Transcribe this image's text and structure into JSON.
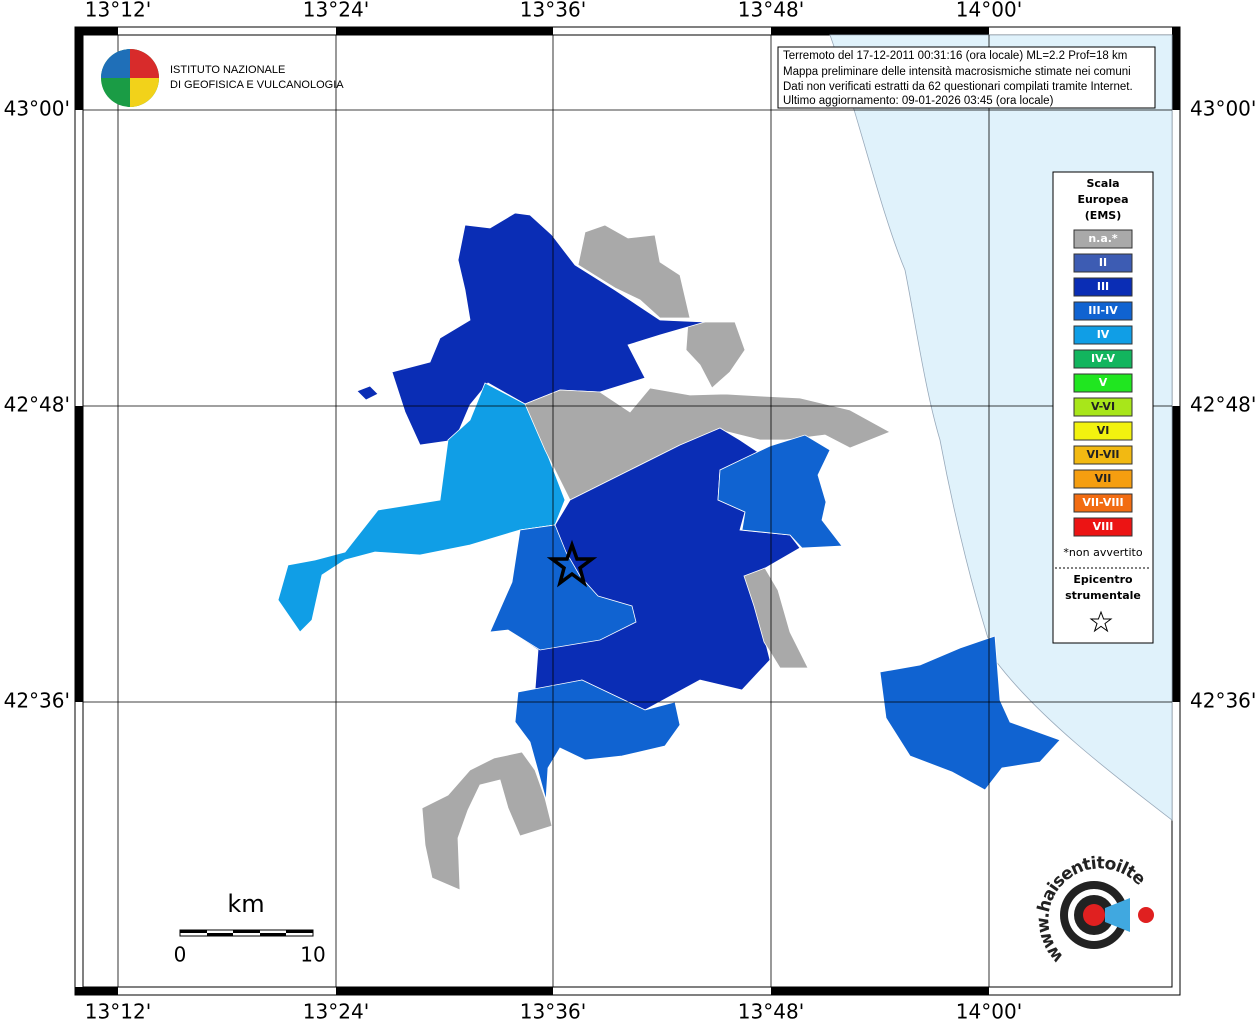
{
  "logo": {
    "line1": "ISTITUTO NAZIONALE",
    "line2": "DI GEOFISICA E VULCANOLOGIA"
  },
  "info": [
    "Terremoto del 17-12-2011 00:31:16 (ora locale) ML=2.2 Prof=18 km",
    "Mappa preliminare delle intensità macrosismiche stimate nei comuni",
    "Dati non verificati estratti da 62 questionari compilati tramite Internet.",
    "Ultimo aggiornamento: 09-01-2026 03:45 (ora locale)"
  ],
  "axes": {
    "longitude": [
      "13°12'",
      "13°24'",
      "13°36'",
      "13°48'",
      "14°00'"
    ],
    "latitude": [
      "43°00'",
      "42°48'",
      "42°36'"
    ]
  },
  "legend": {
    "title": [
      "Scala",
      "Europea",
      "(EMS)"
    ],
    "items": [
      {
        "label": "n.a.*",
        "color": "#a9a9a9"
      },
      {
        "label": "II",
        "color": "#3d5cb3"
      },
      {
        "label": "III",
        "color": "#0a2db5"
      },
      {
        "label": "III-IV",
        "color": "#1063d1"
      },
      {
        "label": "IV",
        "color": "#109ee6"
      },
      {
        "label": "IV-V",
        "color": "#12b55e"
      },
      {
        "label": "V",
        "color": "#20e620"
      },
      {
        "label": "V-VI",
        "color": "#a8e61a"
      },
      {
        "label": "VI",
        "color": "#f2f20f"
      },
      {
        "label": "VI-VII",
        "color": "#f2b912"
      },
      {
        "label": "VII",
        "color": "#f59e10"
      },
      {
        "label": "VII-VIII",
        "color": "#f26c12"
      },
      {
        "label": "VIII",
        "color": "#ec1414"
      }
    ],
    "note": "*non avvertito",
    "epicenter": [
      "Epicentro",
      "strumentale"
    ]
  },
  "scale": {
    "unit": "km",
    "start": "0",
    "end": "10"
  },
  "site": "www.haisentitoilterremoto.it"
}
